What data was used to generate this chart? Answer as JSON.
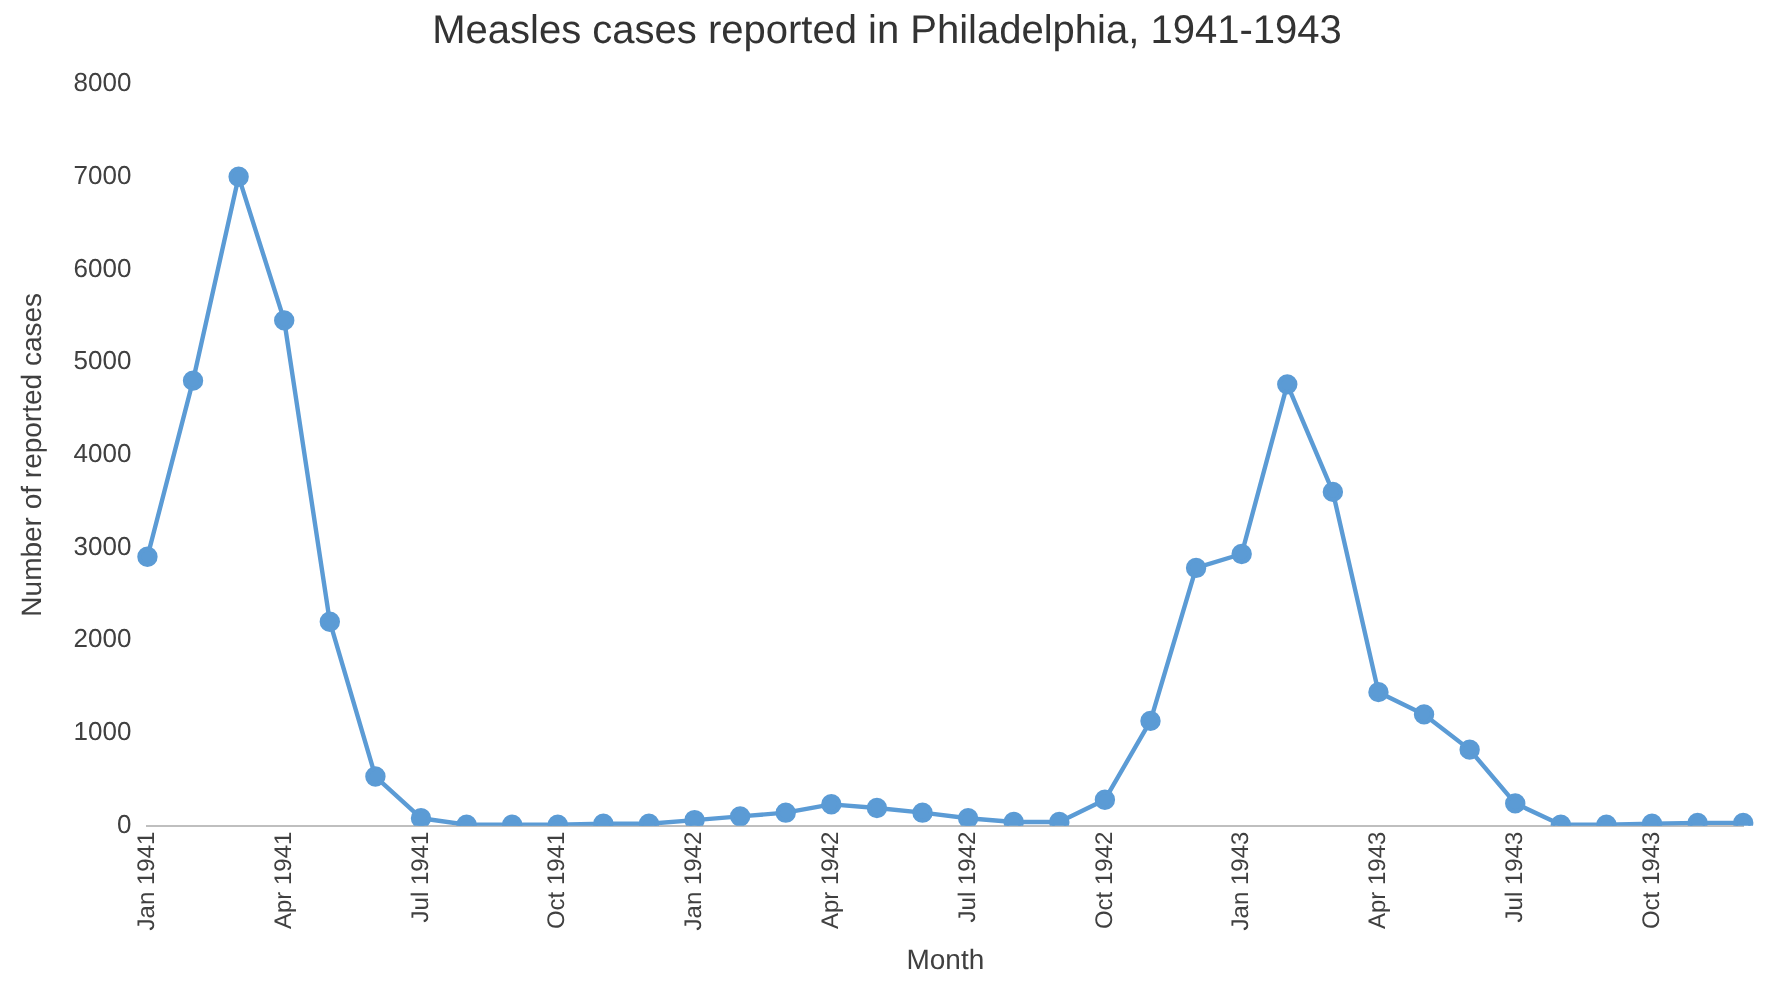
{
  "chart_data": {
    "type": "line",
    "title": "Measles cases reported in Philadelphia, 1941-1943",
    "xlabel": "Month",
    "ylabel": "Number of reported cases",
    "categories": [
      "Jan 1941",
      null,
      null,
      "Apr 1941",
      null,
      null,
      "Jul 1941",
      null,
      null,
      "Oct 1941",
      null,
      null,
      "Jan 1942",
      null,
      null,
      "Apr 1942",
      null,
      null,
      "Jul 1942",
      null,
      null,
      "Oct 1942",
      null,
      null,
      "Jan 1943",
      null,
      null,
      "Apr 1943",
      null,
      null,
      "Jul 1943",
      null,
      null,
      "Oct 1943",
      null,
      null
    ],
    "series": [
      {
        "color": "#5b9bd5",
        "values": [
          2900,
          4800,
          7000,
          5450,
          2200,
          530,
          80,
          10,
          10,
          10,
          20,
          20,
          60,
          100,
          140,
          230,
          190,
          140,
          80,
          40,
          40,
          280,
          1130,
          2780,
          2930,
          4760,
          3600,
          1440,
          1200,
          820,
          240,
          10,
          10,
          20,
          30,
          30
        ]
      }
    ],
    "ylim": [
      0,
      8000
    ],
    "yticks": [
      0,
      1000,
      2000,
      3000,
      4000,
      5000,
      6000,
      7000,
      8000
    ],
    "grid": false,
    "legend": false,
    "marker": "circle",
    "line_style": "solid"
  }
}
